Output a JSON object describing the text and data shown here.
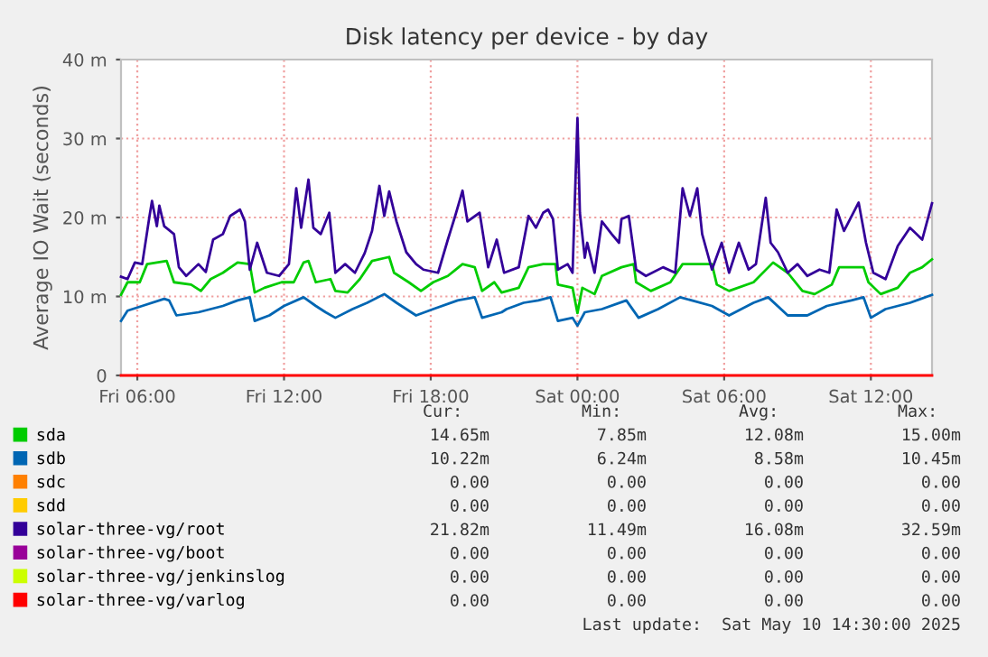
{
  "chart_data": {
    "type": "line",
    "title": "Disk latency per device - by day",
    "ylabel": "Average IO Wait (seconds)",
    "xlim": [
      "2025-05-09T05:20",
      "2025-05-10T14:30"
    ],
    "xticks": [
      {
        "value": "2025-05-09T06:00",
        "label": "Fri 06:00"
      },
      {
        "value": "2025-05-09T12:00",
        "label": "Fri 12:00"
      },
      {
        "value": "2025-05-09T18:00",
        "label": "Fri 18:00"
      },
      {
        "value": "2025-05-10T00:00",
        "label": "Sat 00:00"
      },
      {
        "value": "2025-05-10T06:00",
        "label": "Sat 06:00"
      },
      {
        "value": "2025-05-10T12:00",
        "label": "Sat 12:00"
      }
    ],
    "ylim": [
      0,
      40
    ],
    "yticks": [
      0,
      {
        "value": 10,
        "label": "10 m"
      },
      {
        "value": 20,
        "label": "20 m"
      },
      {
        "value": 30,
        "label": "30 m"
      },
      {
        "value": 40,
        "label": "40 m"
      }
    ],
    "grid": true,
    "legend": "bottom",
    "marker": "none",
    "line_style": "solid",
    "series": [
      {
        "name": "sda",
        "color": "#00cc00",
        "x": [
          "2025-05-09T05:20",
          "2025-05-09T05:36",
          "2025-05-09T06:06",
          "2025-05-09T06:24",
          "2025-05-09T07:12",
          "2025-05-09T07:30",
          "2025-05-09T08:12",
          "2025-05-09T08:36",
          "2025-05-09T09:00",
          "2025-05-09T09:30",
          "2025-05-09T10:06",
          "2025-05-09T10:36",
          "2025-05-09T10:48",
          "2025-05-09T11:12",
          "2025-05-09T11:54",
          "2025-05-09T12:24",
          "2025-05-09T12:48",
          "2025-05-09T13:00",
          "2025-05-09T13:18",
          "2025-05-09T13:54",
          "2025-05-09T14:06",
          "2025-05-09T14:36",
          "2025-05-09T15:06",
          "2025-05-09T15:36",
          "2025-05-09T16:18",
          "2025-05-09T16:30",
          "2025-05-09T17:06",
          "2025-05-09T17:36",
          "2025-05-09T18:06",
          "2025-05-09T18:42",
          "2025-05-09T19:18",
          "2025-05-09T19:48",
          "2025-05-09T20:06",
          "2025-05-09T20:36",
          "2025-05-09T20:54",
          "2025-05-09T21:36",
          "2025-05-09T22:00",
          "2025-05-09T22:36",
          "2025-05-09T23:06",
          "2025-05-09T23:12",
          "2025-05-09T23:48",
          "2025-05-10T00:00",
          "2025-05-10T00:12",
          "2025-05-10T00:42",
          "2025-05-10T01:00",
          "2025-05-10T01:48",
          "2025-05-10T02:18",
          "2025-05-10T02:24",
          "2025-05-10T03:00",
          "2025-05-10T03:48",
          "2025-05-10T04:18",
          "2025-05-10T05:30",
          "2025-05-10T05:42",
          "2025-05-10T06:12",
          "2025-05-10T07:12",
          "2025-05-10T08:00",
          "2025-05-10T08:36",
          "2025-05-10T09:12",
          "2025-05-10T09:42",
          "2025-05-10T10:24",
          "2025-05-10T10:42",
          "2025-05-10T11:42",
          "2025-05-10T11:54",
          "2025-05-10T12:24",
          "2025-05-10T13:06",
          "2025-05-10T13:36",
          "2025-05-10T14:06",
          "2025-05-10T14:30"
        ],
        "values": [
          10.2,
          11.8,
          11.8,
          14.1,
          14.5,
          11.8,
          11.5,
          10.7,
          12.2,
          13,
          14.3,
          14.1,
          10.5,
          11.1,
          11.8,
          11.8,
          14.3,
          14.5,
          11.8,
          12.2,
          10.7,
          10.5,
          12.2,
          14.5,
          15,
          13,
          11.8,
          10.7,
          11.8,
          12.6,
          14.1,
          13.7,
          10.7,
          11.8,
          10.5,
          11.1,
          13.7,
          14.1,
          14.1,
          11.5,
          11.1,
          7.9,
          11.1,
          10.3,
          12.6,
          13.7,
          14.1,
          11.8,
          10.7,
          11.8,
          14.1,
          14.1,
          11.5,
          10.7,
          11.8,
          14.3,
          13,
          10.7,
          10.3,
          11.5,
          13.7,
          13.7,
          11.8,
          10.3,
          11.1,
          13,
          13.7,
          14.7
        ]
      },
      {
        "name": "sdb",
        "color": "#0066b3",
        "x": [
          "2025-05-09T05:20",
          "2025-05-09T05:36",
          "2025-05-09T06:12",
          "2025-05-09T07:06",
          "2025-05-09T07:18",
          "2025-05-09T07:36",
          "2025-05-09T08:30",
          "2025-05-09T09:00",
          "2025-05-09T09:30",
          "2025-05-09T10:06",
          "2025-05-09T10:36",
          "2025-05-09T10:48",
          "2025-05-09T11:24",
          "2025-05-09T12:00",
          "2025-05-09T12:48",
          "2025-05-09T13:18",
          "2025-05-09T13:42",
          "2025-05-09T14:06",
          "2025-05-09T14:48",
          "2025-05-09T15:24",
          "2025-05-09T16:06",
          "2025-05-09T16:36",
          "2025-05-09T17:24",
          "2025-05-09T18:06",
          "2025-05-09T19:06",
          "2025-05-09T19:48",
          "2025-05-09T20:06",
          "2025-05-09T20:54",
          "2025-05-09T21:06",
          "2025-05-09T21:48",
          "2025-05-09T22:24",
          "2025-05-09T22:54",
          "2025-05-09T23:12",
          "2025-05-09T23:48",
          "2025-05-10T00:00",
          "2025-05-10T00:18",
          "2025-05-10T01:00",
          "2025-05-10T02:00",
          "2025-05-10T02:30",
          "2025-05-10T03:18",
          "2025-05-10T04:12",
          "2025-05-10T05:30",
          "2025-05-10T06:12",
          "2025-05-10T07:12",
          "2025-05-10T07:48",
          "2025-05-10T08:36",
          "2025-05-10T09:24",
          "2025-05-10T10:12",
          "2025-05-10T11:12",
          "2025-05-10T11:42",
          "2025-05-10T12:00",
          "2025-05-10T12:36",
          "2025-05-10T13:36",
          "2025-05-10T14:30"
        ],
        "values": [
          6.9,
          8.2,
          8.8,
          9.7,
          9.5,
          7.6,
          8,
          8.4,
          8.8,
          9.5,
          9.9,
          6.9,
          7.6,
          8.8,
          9.9,
          8.8,
          8,
          7.3,
          8.4,
          9.2,
          10.3,
          9.2,
          7.6,
          8.4,
          9.5,
          9.9,
          7.3,
          8,
          8.4,
          9.2,
          9.5,
          9.9,
          6.9,
          7.3,
          6.3,
          8,
          8.4,
          9.5,
          7.3,
          8.4,
          9.9,
          8.8,
          7.6,
          9.2,
          9.9,
          7.6,
          7.6,
          8.8,
          9.5,
          9.9,
          7.3,
          8.4,
          9.2,
          10.2
        ]
      },
      {
        "name": "sdc",
        "color": "#ff8000"
      },
      {
        "name": "sdd",
        "color": "#ffcc00"
      },
      {
        "name": "solar-three-vg/root",
        "color": "#330099",
        "x": [
          "2025-05-09T05:20",
          "2025-05-09T05:36",
          "2025-05-09T05:54",
          "2025-05-09T06:12",
          "2025-05-09T06:30",
          "2025-05-09T06:36",
          "2025-05-09T06:48",
          "2025-05-09T06:54",
          "2025-05-09T07:06",
          "2025-05-09T07:30",
          "2025-05-09T07:42",
          "2025-05-09T08:00",
          "2025-05-09T08:30",
          "2025-05-09T08:48",
          "2025-05-09T09:06",
          "2025-05-09T09:30",
          "2025-05-09T09:48",
          "2025-05-09T10:12",
          "2025-05-09T10:24",
          "2025-05-09T10:36",
          "2025-05-09T10:54",
          "2025-05-09T11:18",
          "2025-05-09T11:48",
          "2025-05-09T12:12",
          "2025-05-09T12:30",
          "2025-05-09T12:42",
          "2025-05-09T13:00",
          "2025-05-09T13:12",
          "2025-05-09T13:30",
          "2025-05-09T13:51",
          "2025-05-09T14:06",
          "2025-05-09T14:30",
          "2025-05-09T14:54",
          "2025-05-09T15:18",
          "2025-05-09T15:36",
          "2025-05-09T15:54",
          "2025-05-09T16:06",
          "2025-05-09T16:18",
          "2025-05-09T16:36",
          "2025-05-09T17:00",
          "2025-05-09T17:24",
          "2025-05-09T17:42",
          "2025-05-09T18:18",
          "2025-05-09T18:42",
          "2025-05-09T19:00",
          "2025-05-09T19:18",
          "2025-05-09T19:30",
          "2025-05-09T20:00",
          "2025-05-09T20:21",
          "2025-05-09T20:42",
          "2025-05-09T21:00",
          "2025-05-09T21:36",
          "2025-05-09T22:00",
          "2025-05-09T22:18",
          "2025-05-09T22:36",
          "2025-05-09T22:48",
          "2025-05-09T23:00",
          "2025-05-09T23:12",
          "2025-05-09T23:36",
          "2025-05-09T23:48",
          "2025-05-10T00:00",
          "2025-05-10T00:06",
          "2025-05-10T00:18",
          "2025-05-10T00:24",
          "2025-05-10T00:42",
          "2025-05-10T01:00",
          "2025-05-10T01:24",
          "2025-05-10T01:42",
          "2025-05-10T01:48",
          "2025-05-10T02:06",
          "2025-05-10T02:24",
          "2025-05-10T02:48",
          "2025-05-10T03:30",
          "2025-05-10T04:00",
          "2025-05-10T04:18",
          "2025-05-10T04:36",
          "2025-05-10T04:54",
          "2025-05-10T05:06",
          "2025-05-10T05:30",
          "2025-05-10T05:54",
          "2025-05-10T06:12",
          "2025-05-10T06:36",
          "2025-05-10T07:00",
          "2025-05-10T07:18",
          "2025-05-10T07:42",
          "2025-05-10T07:54",
          "2025-05-10T08:12",
          "2025-05-10T08:36",
          "2025-05-10T09:00",
          "2025-05-10T09:24",
          "2025-05-10T09:54",
          "2025-05-10T10:18",
          "2025-05-10T10:36",
          "2025-05-10T10:54",
          "2025-05-10T11:30",
          "2025-05-10T11:48",
          "2025-05-10T12:06",
          "2025-05-10T12:36",
          "2025-05-10T13:06",
          "2025-05-10T13:36",
          "2025-05-10T14:06",
          "2025-05-10T14:30"
        ],
        "values": [
          12.5,
          12.2,
          14.3,
          14.1,
          20.2,
          22.1,
          18.9,
          21.5,
          18.9,
          17.9,
          13.7,
          12.6,
          14.1,
          13.1,
          17.2,
          17.9,
          20.2,
          21,
          19.5,
          13.4,
          16.8,
          13,
          12.6,
          14.1,
          23.7,
          18.7,
          24.8,
          18.7,
          17.9,
          20.6,
          13,
          14.1,
          13,
          15.5,
          18.3,
          24,
          20.2,
          23.3,
          19.5,
          15.6,
          14.1,
          13.4,
          13,
          17.2,
          20.2,
          23.4,
          19.5,
          20.6,
          13.7,
          17.2,
          13,
          13.7,
          20.2,
          18.7,
          20.6,
          21,
          19.8,
          13.4,
          14.1,
          13,
          32.6,
          20.6,
          14.9,
          16.8,
          13,
          19.5,
          17.9,
          16.8,
          19.8,
          20.2,
          13.4,
          12.6,
          13.7,
          13,
          23.7,
          20.2,
          23.7,
          17.9,
          13.4,
          16.8,
          13,
          16.8,
          13.4,
          14.1,
          22.5,
          16.8,
          15.6,
          13,
          14.1,
          12.6,
          13.4,
          13,
          21,
          18.3,
          21.9,
          16.8,
          13,
          12.2,
          16.4,
          18.7,
          17.2,
          21.8
        ]
      },
      {
        "name": "solar-three-vg/boot",
        "color": "#990099"
      },
      {
        "name": "solar-three-vg/jenkinslog",
        "color": "#ccff00"
      },
      {
        "name": "solar-three-vg/varlog",
        "color": "#ff0000",
        "x": [
          "2025-05-09T05:20",
          "2025-05-10T14:30"
        ],
        "values": [
          0,
          0
        ]
      }
    ],
    "annotations": [
      "Cur:",
      "Min:",
      "Avg:",
      "Max:",
      "14.65m",
      "7.85m",
      "12.08m",
      "15.00m",
      "10.22m",
      "6.24m",
      "8.58m",
      "10.45m",
      "0.00",
      "0.00",
      "0.00",
      "0.00",
      "0.00",
      "0.00",
      "0.00",
      "0.00",
      "21.82m",
      "11.49m",
      "16.08m",
      "32.59m",
      "0.00",
      "0.00",
      "0.00",
      "0.00",
      "0.00",
      "0.00",
      "0.00",
      "0.00",
      "0.00",
      "0.00",
      "0.00",
      "0.00",
      "Last update:  Sat May 10 14:30:00 2025"
    ]
  }
}
